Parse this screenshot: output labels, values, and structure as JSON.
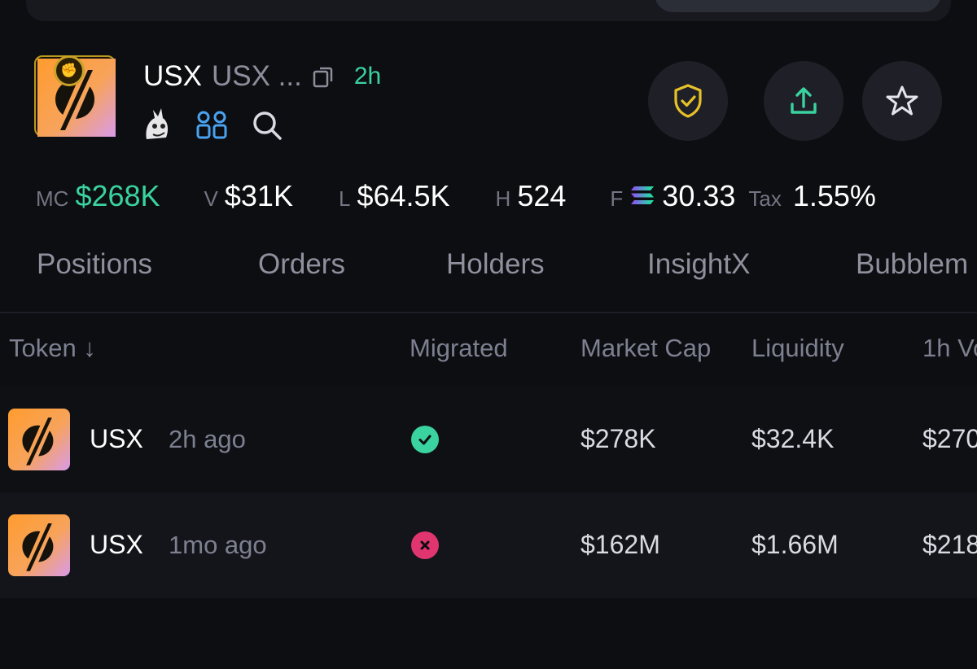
{
  "colors": {
    "background": "#0d0e12",
    "accent_green": "#3ad29f",
    "accent_red": "#e0356f",
    "accent_blue": "#4aa3f0",
    "badge_gold": "#c9a227"
  },
  "token": {
    "symbol": "USX",
    "name": "USX ...",
    "age": "2h",
    "icons": [
      "copy-icon",
      "dev-mascot-icon",
      "holders-group-icon",
      "search-icon"
    ]
  },
  "actions": {
    "icons": [
      "shield-check-icon",
      "share-upload-icon",
      "star-icon"
    ]
  },
  "stats": [
    {
      "label": "MC",
      "value": "$268K"
    },
    {
      "label": "V",
      "value": "$31K"
    },
    {
      "label": "L",
      "value": "$64.5K"
    },
    {
      "label": "H",
      "value": "524"
    },
    {
      "label": "F",
      "value": "30.33"
    },
    {
      "label": "Tax",
      "value": "1.55%"
    }
  ],
  "tabs": [
    "Positions",
    "Orders",
    "Holders",
    "InsightX",
    "Bubblem"
  ],
  "table": {
    "headers": {
      "token": "Token ↓",
      "migrated": "Migrated",
      "market_cap": "Market Cap",
      "liquidity": "Liquidity",
      "volume": "1h Vo"
    },
    "rows": [
      {
        "symbol": "USX",
        "age": "2h ago",
        "migrated": true,
        "market_cap": "$278K",
        "liquidity": "$32.4K",
        "volume": "$270"
      },
      {
        "symbol": "USX",
        "age": "1mo ago",
        "migrated": false,
        "market_cap": "$162M",
        "liquidity": "$1.66M",
        "volume": "$218"
      }
    ]
  }
}
